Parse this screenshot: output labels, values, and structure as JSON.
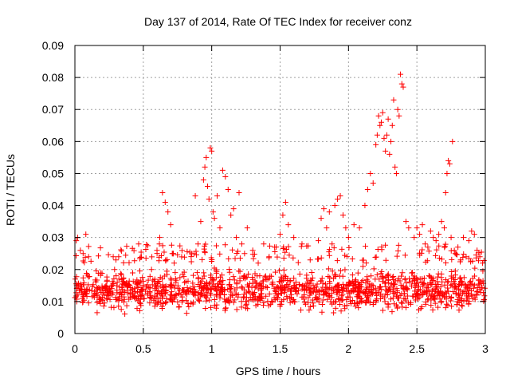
{
  "chart_data": {
    "type": "scatter",
    "title": "Day 137 of 2014, Rate Of TEC Index for receiver conz",
    "xlabel": "GPS time / hours",
    "ylabel": "ROTI / TECUs",
    "xlim": [
      0,
      3
    ],
    "ylim": [
      0,
      0.09
    ],
    "grid": true,
    "marker": "+",
    "color": "#ff0000",
    "x_ticks": [
      0,
      0.5,
      1,
      1.5,
      2,
      2.5,
      3
    ],
    "x_tick_labels": [
      "0",
      "0.5",
      "1",
      "1.5",
      "2",
      "2.5",
      "3"
    ],
    "y_ticks": [
      0,
      0.01,
      0.02,
      0.03,
      0.04,
      0.05,
      0.06,
      0.07,
      0.08,
      0.09
    ],
    "y_tick_labels": [
      "0",
      "0.01",
      "0.02",
      "0.03",
      "0.04",
      "0.05",
      "0.06",
      "0.07",
      "0.08",
      "0.09"
    ],
    "background_band": {
      "description": "dense scatter of small ROTI values across the whole time range",
      "x_range": [
        0,
        3
      ],
      "y_min": 0.005,
      "y_max": 0.022,
      "count": 1500
    },
    "series": [
      {
        "name": "ROTI",
        "x": [
          0.01,
          0.02,
          0.04,
          0.06,
          0.08,
          0.1,
          0.28,
          0.3,
          0.32,
          0.56,
          0.6,
          0.62,
          0.64,
          0.66,
          0.68,
          0.7,
          0.72,
          0.88,
          0.9,
          0.92,
          0.94,
          0.95,
          0.96,
          0.97,
          0.98,
          0.99,
          1.0,
          1.01,
          1.02,
          1.04,
          1.06,
          1.08,
          1.1,
          1.12,
          1.14,
          1.16,
          1.18,
          1.2,
          1.22,
          1.24,
          1.26,
          1.3,
          1.34,
          1.38,
          1.42,
          1.46,
          1.5,
          1.52,
          1.54,
          1.56,
          1.6,
          1.66,
          1.72,
          1.78,
          1.8,
          1.82,
          1.84,
          1.86,
          1.88,
          1.9,
          1.92,
          1.94,
          1.96,
          1.98,
          2.0,
          2.04,
          2.08,
          2.12,
          2.14,
          2.16,
          2.18,
          2.2,
          2.21,
          2.22,
          2.23,
          2.24,
          2.25,
          2.26,
          2.27,
          2.28,
          2.29,
          2.3,
          2.31,
          2.32,
          2.33,
          2.34,
          2.35,
          2.36,
          2.37,
          2.38,
          2.39,
          2.4,
          2.42,
          2.44,
          2.48,
          2.5,
          2.52,
          2.54,
          2.56,
          2.58,
          2.6,
          2.62,
          2.64,
          2.66,
          2.68,
          2.7,
          2.71,
          2.72,
          2.73,
          2.74,
          2.75,
          2.76,
          2.78,
          2.8,
          2.82,
          2.84,
          2.86,
          2.88,
          2.9,
          2.92,
          2.94,
          2.96,
          2.98
        ],
        "y": [
          0.029,
          0.03,
          0.026,
          0.025,
          0.031,
          0.024,
          0.024,
          0.023,
          0.024,
          0.02,
          0.026,
          0.03,
          0.044,
          0.041,
          0.038,
          0.034,
          0.025,
          0.043,
          0.028,
          0.035,
          0.048,
          0.052,
          0.055,
          0.046,
          0.042,
          0.058,
          0.057,
          0.038,
          0.036,
          0.043,
          0.033,
          0.051,
          0.049,
          0.045,
          0.037,
          0.039,
          0.03,
          0.044,
          0.028,
          0.025,
          0.033,
          0.026,
          0.022,
          0.028,
          0.024,
          0.027,
          0.031,
          0.037,
          0.041,
          0.034,
          0.03,
          0.028,
          0.023,
          0.029,
          0.036,
          0.039,
          0.033,
          0.038,
          0.028,
          0.04,
          0.042,
          0.043,
          0.037,
          0.033,
          0.03,
          0.034,
          0.033,
          0.04,
          0.045,
          0.05,
          0.047,
          0.059,
          0.062,
          0.068,
          0.065,
          0.066,
          0.069,
          0.061,
          0.057,
          0.062,
          0.067,
          0.056,
          0.06,
          0.065,
          0.073,
          0.052,
          0.05,
          0.07,
          0.068,
          0.081,
          0.078,
          0.077,
          0.035,
          0.033,
          0.03,
          0.033,
          0.031,
          0.034,
          0.028,
          0.027,
          0.032,
          0.03,
          0.029,
          0.031,
          0.035,
          0.033,
          0.044,
          0.05,
          0.054,
          0.053,
          0.03,
          0.06,
          0.025,
          0.027,
          0.023,
          0.03,
          0.024,
          0.029,
          0.032,
          0.031,
          0.026,
          0.024,
          0.022
        ]
      }
    ]
  }
}
